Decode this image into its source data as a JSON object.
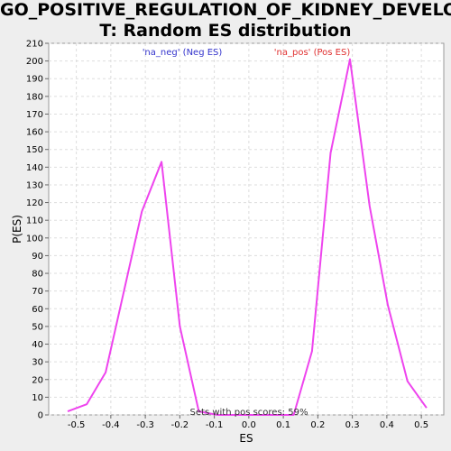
{
  "chart_data": {
    "type": "line",
    "title_lines": [
      "GO_POSITIVE_REGULATION_OF_KIDNEY_DEVELOPMEN",
      "T: Random ES distribution"
    ],
    "xlabel": "ES",
    "ylabel": "P(ES)",
    "xlim": [
      -0.58,
      0.565
    ],
    "ylim": [
      0,
      210
    ],
    "x_ticks": [
      -0.5,
      -0.4,
      -0.3,
      -0.2,
      -0.1,
      0.0,
      0.1,
      0.2,
      0.3,
      0.4,
      0.5
    ],
    "x_tick_labels": [
      "-0.5",
      "-0.4",
      "-0.3",
      "-0.2",
      "-0.1",
      "0.0",
      "0.1",
      "0.2",
      "0.3",
      "0.4",
      "0.5"
    ],
    "y_ticks": [
      0,
      10,
      20,
      30,
      40,
      50,
      60,
      70,
      80,
      90,
      100,
      110,
      120,
      130,
      140,
      150,
      160,
      170,
      180,
      190,
      200,
      210
    ],
    "y_tick_labels": [
      "0",
      "10",
      "20",
      "30",
      "40",
      "50",
      "60",
      "70",
      "80",
      "90",
      "100",
      "110",
      "120",
      "130",
      "140",
      "150",
      "160",
      "170",
      "180",
      "190",
      "200",
      "210"
    ],
    "grid": true,
    "series": [
      {
        "color": "#ee44ee",
        "points": [
          [
            -0.525,
            2
          ],
          [
            -0.47,
            6
          ],
          [
            -0.415,
            24
          ],
          [
            -0.31,
            115
          ],
          [
            -0.253,
            143
          ],
          [
            -0.2,
            50
          ],
          [
            -0.145,
            2
          ],
          [
            -0.09,
            0
          ],
          [
            0.0,
            0
          ],
          [
            0.1,
            0
          ],
          [
            0.13,
            0
          ],
          [
            0.183,
            36
          ],
          [
            0.237,
            148
          ],
          [
            0.293,
            201
          ],
          [
            0.35,
            118
          ],
          [
            0.403,
            62
          ],
          [
            0.46,
            19
          ],
          [
            0.515,
            4
          ]
        ]
      }
    ],
    "legend": [
      {
        "label": "'na_neg' (Neg ES)",
        "color": "#3333cc"
      },
      {
        "label": "'na_pos' (Pos ES)",
        "color": "#e03030"
      }
    ],
    "annotation": "Sets with pos scores: 59%"
  }
}
